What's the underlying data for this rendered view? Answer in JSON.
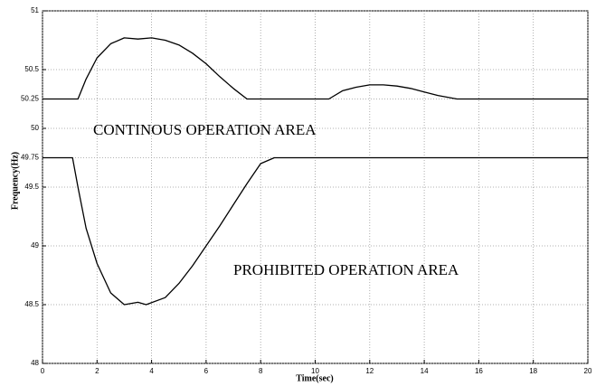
{
  "chart_data": {
    "type": "line",
    "xlabel": "Time(sec)",
    "ylabel": "Frequency(Hz)",
    "annotations": [
      "CONTINOUS OPERATION AREA",
      "PROHIBITED OPERATION AREA"
    ],
    "xlim": [
      0,
      20
    ],
    "xticks": [
      0,
      2,
      4,
      6,
      8,
      10,
      12,
      14,
      16,
      18,
      20
    ],
    "ylim": [
      48,
      51
    ],
    "yticks": [
      48,
      48.5,
      49,
      49.5,
      49.75,
      50,
      50.25,
      50.5,
      51
    ],
    "grid": true,
    "series": [
      {
        "color": "#000000",
        "x": [
          0,
          1.3,
          1.6,
          2,
          2.5,
          3,
          3.5,
          4,
          4.5,
          5,
          5.5,
          6,
          6.5,
          7,
          7.5,
          10.5,
          11,
          11.5,
          12,
          12.5,
          13,
          13.5,
          14,
          14.5,
          15.2,
          20
        ],
        "values": [
          50.25,
          50.25,
          50.42,
          50.6,
          50.72,
          50.77,
          50.76,
          50.77,
          50.75,
          50.71,
          50.64,
          50.55,
          50.44,
          50.34,
          50.25,
          50.25,
          50.32,
          50.35,
          50.37,
          50.37,
          50.36,
          50.34,
          50.31,
          50.28,
          50.25,
          50.25
        ]
      },
      {
        "color": "#000000",
        "x": [
          0,
          1.1,
          1.3,
          1.6,
          2,
          2.5,
          3,
          3.5,
          3.8,
          4.5,
          5,
          5.5,
          6,
          6.5,
          7,
          7.5,
          8,
          8.5,
          20
        ],
        "values": [
          49.75,
          49.75,
          49.5,
          49.15,
          48.85,
          48.6,
          48.5,
          48.52,
          48.5,
          48.56,
          48.68,
          48.83,
          49.0,
          49.17,
          49.35,
          49.53,
          49.7,
          49.75,
          49.75
        ]
      }
    ]
  }
}
